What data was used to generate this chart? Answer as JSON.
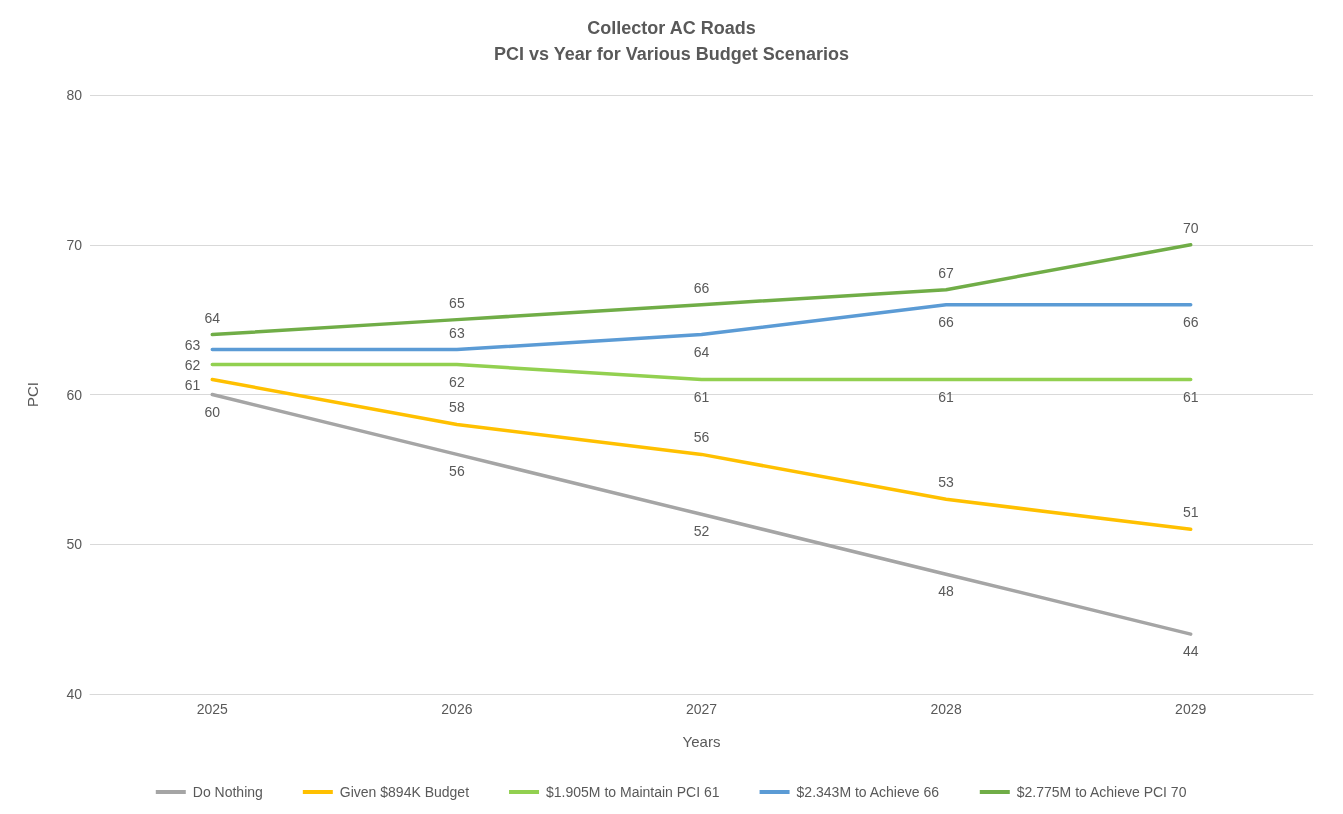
{
  "chart_data": {
    "type": "line",
    "title": "Collector AC Roads",
    "subtitle": "PCI vs Year for Various Budget Scenarios",
    "xlabel": "Years",
    "ylabel": "PCI",
    "categories": [
      "2025",
      "2026",
      "2027",
      "2028",
      "2029"
    ],
    "series": [
      {
        "name": "Do Nothing",
        "color": "#a5a5a5",
        "values": [
          60,
          56,
          52,
          48,
          44
        ]
      },
      {
        "name": "Given $894K Budget",
        "color": "#ffc000",
        "values": [
          61,
          58,
          56,
          53,
          51
        ]
      },
      {
        "name": "$1.905M to Maintain PCI 61",
        "color": "#92d050",
        "values": [
          62,
          62,
          61,
          61,
          61
        ]
      },
      {
        "name": "$2.343M to Achieve 66",
        "color": "#5b9bd5",
        "values": [
          63,
          63,
          64,
          66,
          66
        ]
      },
      {
        "name": "$2.775M to Achieve PCI 70",
        "color": "#70ad47",
        "values": [
          64,
          65,
          66,
          67,
          70
        ]
      }
    ],
    "ylim": [
      40,
      80
    ],
    "yticks": [
      40,
      50,
      60,
      70,
      80
    ],
    "grid": "y",
    "legend": "bottom",
    "marker": "none",
    "line_style": "solid",
    "data_labels": true
  }
}
